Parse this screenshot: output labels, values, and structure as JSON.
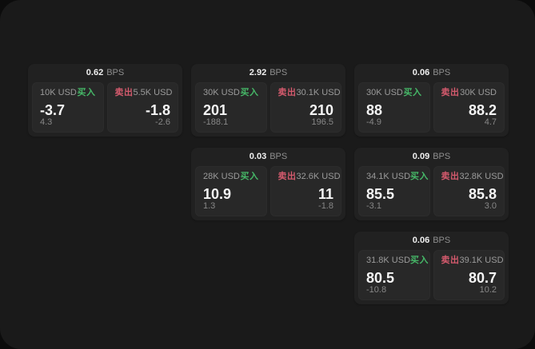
{
  "labels": {
    "bps_unit": "BPS",
    "buy": "买入",
    "sell": "卖出"
  },
  "colors": {
    "outer_background": "#0c0c0c",
    "surface": "#1a1a1a",
    "card_background": "#212121",
    "panel_background": "#282828",
    "buy_green": "#46b868",
    "sell_red": "#d45a6d",
    "text_primary": "#f5f5f5",
    "text_secondary": "#9b9b9b"
  },
  "cards": [
    {
      "bps": "0.62",
      "buy": {
        "amount": "10K USD",
        "value": "-3.7",
        "delta": "4.3"
      },
      "sell": {
        "amount": "5.5K USD",
        "value": "-1.8",
        "delta": "-2.6"
      }
    },
    {
      "bps": "2.92",
      "buy": {
        "amount": "30K USD",
        "value": "201",
        "delta": "-188.1"
      },
      "sell": {
        "amount": "30.1K USD",
        "value": "210",
        "delta": "196.5"
      }
    },
    {
      "bps": "0.06",
      "buy": {
        "amount": "30K USD",
        "value": "88",
        "delta": "-4.9"
      },
      "sell": {
        "amount": "30K USD",
        "value": "88.2",
        "delta": "4.7"
      }
    },
    {
      "bps": "0.03",
      "buy": {
        "amount": "28K USD",
        "value": "10.9",
        "delta": "1.3"
      },
      "sell": {
        "amount": "32.6K USD",
        "value": "11",
        "delta": "-1.8"
      }
    },
    {
      "bps": "0.09",
      "buy": {
        "amount": "34.1K USD",
        "value": "85.5",
        "delta": "-3.1"
      },
      "sell": {
        "amount": "32.8K USD",
        "value": "85.8",
        "delta": "3.0"
      }
    },
    {
      "bps": "0.06",
      "buy": {
        "amount": "31.8K USD",
        "value": "80.5",
        "delta": "-10.8"
      },
      "sell": {
        "amount": "39.1K USD",
        "value": "80.7",
        "delta": "10.2"
      }
    }
  ]
}
